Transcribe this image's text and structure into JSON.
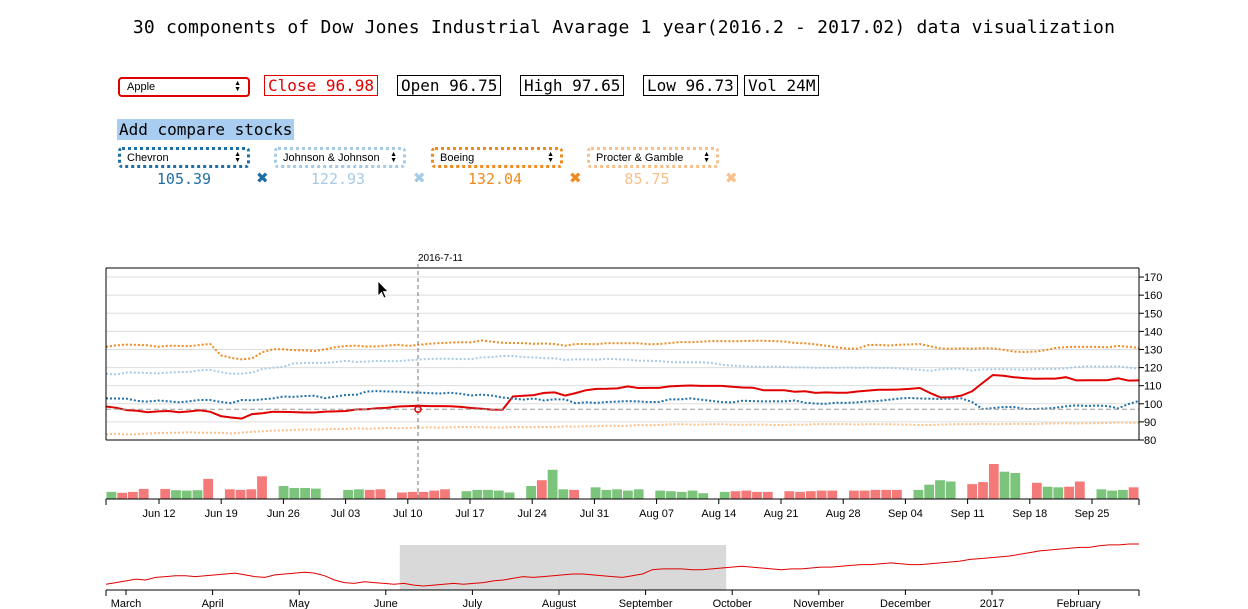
{
  "title": "30 components of Dow Jones Industrial Avarage 1 year(2016.2 - 2017.02) data visualization",
  "main_stock": {
    "selected": "Apple",
    "color": "#e00000"
  },
  "stats": [
    {
      "label": "Close",
      "value": "96.98"
    },
    {
      "label": "Open",
      "value": "96.75"
    },
    {
      "label": "High",
      "value": "97.65"
    },
    {
      "label": "Low",
      "value": "96.73"
    },
    {
      "label": "Vol",
      "value": "24M"
    }
  ],
  "compare": {
    "title": "Add compare stocks",
    "stocks": [
      {
        "name": "Chevron",
        "value": "105.39",
        "color": "#1f6fa6"
      },
      {
        "name": "Johnson & Johnson",
        "value": "122.93",
        "color": "#a6cbe6"
      },
      {
        "name": "Boeing",
        "value": "132.04",
        "color": "#f08a1e"
      },
      {
        "name": "Procter & Gamble",
        "value": "85.75",
        "color": "#f7c08a"
      }
    ]
  },
  "chart_data": {
    "type": "line",
    "hover_date": "2016-7-11",
    "y_ticks": [
      80,
      90,
      100,
      110,
      120,
      130,
      140,
      150,
      160,
      170
    ],
    "ylim": [
      80,
      175
    ],
    "x_ticks": [
      "Jun 12",
      "Jun 19",
      "Jun 26",
      "Jul 03",
      "Jul 10",
      "Jul 17",
      "Jul 24",
      "Jul 31",
      "Aug 07",
      "Aug 14",
      "Aug 21",
      "Aug 28",
      "Sep 04",
      "Sep 11",
      "Sep 18",
      "Sep 25"
    ],
    "series": [
      {
        "values": [
          98.5,
          97.8,
          96.5,
          96.2,
          95.3,
          95.8,
          96.0,
          95.3,
          95.8,
          96.4,
          95.6,
          93.2,
          92.4,
          91.8,
          94.3,
          94.8,
          95.6,
          95.5,
          95.4,
          95.2,
          95.2,
          95.7,
          95.8,
          96.0,
          96.9,
          97.0,
          97.5,
          97.8,
          98.5,
          98.7,
          98.9,
          98.7,
          98.7,
          98.6,
          98.3,
          97.7,
          97.3,
          96.8,
          96.7,
          104.0,
          104.4,
          104.8,
          106.0,
          106.3,
          104.5,
          105.9,
          107.5,
          108.2,
          108.3,
          108.5,
          109.6,
          108.7,
          108.8,
          108.8,
          109.6,
          109.9,
          110.1,
          109.9,
          109.9,
          109.9,
          109.4,
          109.0,
          108.9,
          107.5,
          107.5,
          107.5,
          106.6,
          106.9,
          106.0,
          106.3,
          106.1,
          106.1,
          106.8,
          107.3,
          107.7,
          107.8,
          107.9,
          108.2,
          108.7,
          105.9,
          103.5,
          103.6,
          104.6,
          106.9,
          111.5,
          115.9,
          115.5,
          114.7,
          114.2,
          113.8,
          113.9,
          113.9,
          114.7,
          112.9,
          113.0,
          113.0,
          113.1,
          114.1,
          112.8,
          112.9
        ]
      },
      {
        "values": [
          103.0,
          102.9,
          102.8,
          101.6,
          101.2,
          101.8,
          101.4,
          100.8,
          101.4,
          102.1,
          102.1,
          101.0,
          100.4,
          102.1,
          101.9,
          102.5,
          103.0,
          104.0,
          103.8,
          104.3,
          104.4,
          103.1,
          104.0,
          104.9,
          105.0,
          106.8,
          107.0,
          106.8,
          106.7,
          106.3,
          106.2,
          105.9,
          105.7,
          106.1,
          105.5,
          104.6,
          105.1,
          104.5,
          103.4,
          102.9,
          102.3,
          102.9,
          101.8,
          102.5,
          102.4,
          100.3,
          100.8,
          100.5,
          101.0,
          101.2,
          101.5,
          101.3,
          101.0,
          101.0,
          102.4,
          102.4,
          103.0,
          102.3,
          101.6,
          101.0,
          100.7,
          101.7,
          101.5,
          101.3,
          101.4,
          101.3,
          101.8,
          100.6,
          100.1,
          100.0,
          100.6,
          100.5,
          100.8,
          101.3,
          101.6,
          102.2,
          102.9,
          103.2,
          102.9,
          102.8,
          102.7,
          102.8,
          103.0,
          101.0,
          97.1,
          97.6,
          98.2,
          98.2,
          97.2,
          97.1,
          97.4,
          97.8,
          98.6,
          99.1,
          98.8,
          99.0,
          98.7,
          97.5,
          99.9,
          101.6
        ]
      },
      {
        "values": [
          116.7,
          116.2,
          117.3,
          117.2,
          117.0,
          116.8,
          117.3,
          117.5,
          117.6,
          118.5,
          118.7,
          117.5,
          116.6,
          116.6,
          117.3,
          119.2,
          119.9,
          120.5,
          122.3,
          122.6,
          122.6,
          122.6,
          123.1,
          123.7,
          123.1,
          123.3,
          123.7,
          123.5,
          123.5,
          124.0,
          124.4,
          124.8,
          124.9,
          124.9,
          124.7,
          124.7,
          125.6,
          125.8,
          126.4,
          126.4,
          125.8,
          125.6,
          125.2,
          125.1,
          124.2,
          124.5,
          124.5,
          124.3,
          124.9,
          124.6,
          124.4,
          123.8,
          123.8,
          123.6,
          123.1,
          122.9,
          122.9,
          122.9,
          122.6,
          121.6,
          121.1,
          120.8,
          120.5,
          120.4,
          120.6,
          120.3,
          120.1,
          120.1,
          119.9,
          119.9,
          119.9,
          120.0,
          119.9,
          120.0,
          119.8,
          119.9,
          119.6,
          119.1,
          118.7,
          118.2,
          119.0,
          119.3,
          119.4,
          118.4,
          119.0,
          119.1,
          119.1,
          119.0,
          118.9,
          119.1,
          119.3,
          119.2,
          119.6,
          120.3,
          120.7,
          120.6,
          120.5,
          120.7,
          120.0,
          119.5
        ]
      },
      {
        "values": [
          131.5,
          132.3,
          132.7,
          132.5,
          132.3,
          131.5,
          132.1,
          132.0,
          131.8,
          132.5,
          133.0,
          126.8,
          125.4,
          124.5,
          125.1,
          128.5,
          130.1,
          130.1,
          129.6,
          129.6,
          129.1,
          130.1,
          131.3,
          131.9,
          132.1,
          131.6,
          131.7,
          132.2,
          132.6,
          132.0,
          132.6,
          133.2,
          133.5,
          133.8,
          134.0,
          133.9,
          135.0,
          134.3,
          133.7,
          133.6,
          133.5,
          133.1,
          133.3,
          133.0,
          132.1,
          133.0,
          133.0,
          132.9,
          133.5,
          133.4,
          133.4,
          133.4,
          132.9,
          133.0,
          133.5,
          134.1,
          134.0,
          134.3,
          134.6,
          134.6,
          134.5,
          134.6,
          134.8,
          134.8,
          134.6,
          134.4,
          133.6,
          133.4,
          132.8,
          132.1,
          131.2,
          130.5,
          130.4,
          132.4,
          132.6,
          132.2,
          132.6,
          132.8,
          133.0,
          131.7,
          130.5,
          130.4,
          130.6,
          130.4,
          130.7,
          130.6,
          129.8,
          128.8,
          128.6,
          128.8,
          129.6,
          130.8,
          131.3,
          131.5,
          131.4,
          131.4,
          131.2,
          132.0,
          131.5,
          130.8
        ]
      },
      {
        "values": [
          83.2,
          83.4,
          83.1,
          83.2,
          83.6,
          83.8,
          84.0,
          84.0,
          84.3,
          84.0,
          84.0,
          84.0,
          83.6,
          84.1,
          84.5,
          84.8,
          85.2,
          85.3,
          85.6,
          85.8,
          85.8,
          85.9,
          86.1,
          86.1,
          86.4,
          86.2,
          86.4,
          86.7,
          86.4,
          86.7,
          86.8,
          87.0,
          86.8,
          87.0,
          87.2,
          87.1,
          87.1,
          86.9,
          86.9,
          87.2,
          87.1,
          87.1,
          87.2,
          87.1,
          87.5,
          87.4,
          87.6,
          87.6,
          87.9,
          87.8,
          87.8,
          88.3,
          88.2,
          88.3,
          88.6,
          88.7,
          88.5,
          88.5,
          88.7,
          88.7,
          88.4,
          88.4,
          88.5,
          88.5,
          88.3,
          88.3,
          88.5,
          88.4,
          88.8,
          88.8,
          88.8,
          88.8,
          88.5,
          88.8,
          88.7,
          88.7,
          88.5,
          88.5,
          88.3,
          88.3,
          88.5,
          88.6,
          88.8,
          88.7,
          88.9,
          88.7,
          88.8,
          88.9,
          88.9,
          88.8,
          89.1,
          89.1,
          89.3,
          89.0,
          89.3,
          89.3,
          89.4,
          89.7,
          89.5,
          89.6
        ]
      }
    ],
    "volume": {
      "values": [
        0.22,
        0.19,
        0.22,
        0.31,
        0.0,
        0.31,
        0.27,
        0.26,
        0.27,
        0.62,
        0.0,
        0.3,
        0.28,
        0.3,
        0.7,
        0.0,
        0.4,
        0.34,
        0.34,
        0.32,
        0.0,
        0.0,
        0.28,
        0.3,
        0.28,
        0.3,
        0.0,
        0.2,
        0.22,
        0.22,
        0.26,
        0.3,
        0.0,
        0.24,
        0.28,
        0.28,
        0.26,
        0.2,
        0.0,
        0.4,
        0.58,
        0.9,
        0.3,
        0.28,
        0.0,
        0.36,
        0.28,
        0.3,
        0.26,
        0.3,
        0.0,
        0.26,
        0.24,
        0.22,
        0.26,
        0.18,
        0.0,
        0.22,
        0.24,
        0.26,
        0.22,
        0.22,
        0.0,
        0.24,
        0.22,
        0.24,
        0.26,
        0.26,
        0.0,
        0.26,
        0.26,
        0.28,
        0.28,
        0.28,
        0.0,
        0.28,
        0.44,
        0.58,
        0.54,
        0.0,
        0.46,
        0.52,
        1.08,
        0.84,
        0.8,
        0.0,
        0.5,
        0.38,
        0.36,
        0.38,
        0.54,
        0.0,
        0.3,
        0.26,
        0.28,
        0.36
      ],
      "up": [
        true,
        false,
        false,
        false,
        true,
        false,
        true,
        true,
        true,
        false,
        true,
        false,
        false,
        false,
        false,
        true,
        true,
        true,
        true,
        true,
        true,
        true,
        true,
        true,
        false,
        false,
        true,
        false,
        false,
        false,
        false,
        false,
        true,
        true,
        true,
        true,
        true,
        true,
        true,
        true,
        false,
        true,
        true,
        false,
        true,
        true,
        true,
        true,
        true,
        true,
        true,
        true,
        true,
        true,
        true,
        true,
        true,
        true,
        false,
        false,
        false,
        false,
        true,
        false,
        false,
        false,
        false,
        false,
        true,
        false,
        false,
        false,
        false,
        false,
        true,
        true,
        true,
        true,
        true,
        true,
        false,
        false,
        false,
        true,
        true,
        true,
        false,
        true,
        true,
        false,
        false,
        true,
        true,
        true,
        true,
        false
      ]
    },
    "overview": {
      "x_ticks": [
        "March",
        "April",
        "May",
        "June",
        "July",
        "August",
        "September",
        "October",
        "November",
        "December",
        "2017",
        "February"
      ],
      "values": [
        95,
        97,
        99,
        101,
        100,
        103,
        104,
        105,
        105,
        104,
        105,
        106,
        107,
        108,
        106,
        104,
        103,
        106,
        107,
        108,
        109,
        108,
        105,
        100,
        97,
        96,
        98,
        97,
        96,
        95,
        96,
        94,
        93,
        94,
        95,
        96,
        95,
        96,
        97,
        99,
        100,
        102,
        104,
        103,
        104,
        105,
        106,
        107,
        107,
        106,
        105,
        104,
        103,
        105,
        107,
        112,
        113,
        113,
        113,
        112,
        112,
        113,
        114,
        115,
        116,
        115,
        114,
        113,
        112,
        113,
        113,
        114,
        115,
        115,
        116,
        117,
        118,
        118,
        119,
        120,
        119,
        118,
        118,
        119,
        120,
        121,
        122,
        124,
        125,
        126,
        127,
        128,
        130,
        132,
        134,
        135,
        136,
        137,
        138,
        138,
        140,
        141,
        141,
        142,
        142
      ],
      "brush_range": [
        "June",
        "October"
      ],
      "brush_color": "#d9d9d9"
    }
  }
}
